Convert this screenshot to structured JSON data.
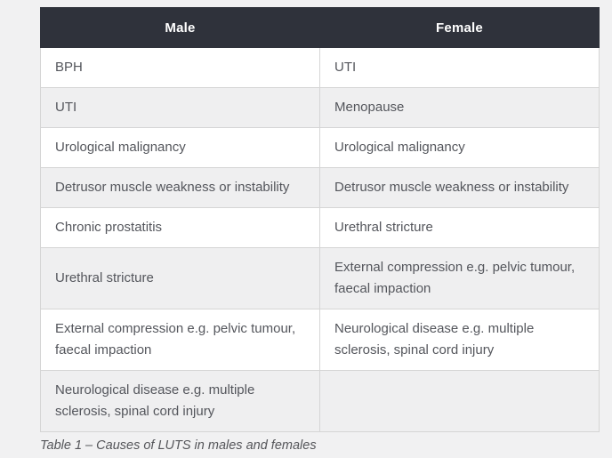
{
  "table": {
    "columns": [
      "Male",
      "Female"
    ],
    "rows": [
      [
        "BPH",
        "UTI"
      ],
      [
        "UTI",
        "Menopause"
      ],
      [
        "Urological malignancy",
        "Urological malignancy"
      ],
      [
        "Detrusor muscle weakness or instability",
        "Detrusor muscle weakness or instability"
      ],
      [
        "Chronic prostatitis",
        "Urethral stricture"
      ],
      [
        "Urethral stricture",
        "External compression e.g. pelvic tumour, faecal impaction"
      ],
      [
        "External compression e.g. pelvic tumour, faecal impaction",
        "Neurological disease e.g. multiple sclerosis, spinal cord injury"
      ],
      [
        "Neurological disease e.g. multiple sclerosis, spinal cord injury",
        ""
      ]
    ],
    "caption": "Table 1 – Causes of LUTS in males and females"
  },
  "colors": {
    "header_bg": "#2f323b",
    "header_text": "#ffffff",
    "header_divider": "#20232b",
    "row_white": "#ffffff",
    "row_alt": "#efeff0",
    "cell_border": "#d5d5d5",
    "cell_text": "#54565c",
    "caption_text": "#55565a",
    "page_bg": "#f1f1f2"
  }
}
